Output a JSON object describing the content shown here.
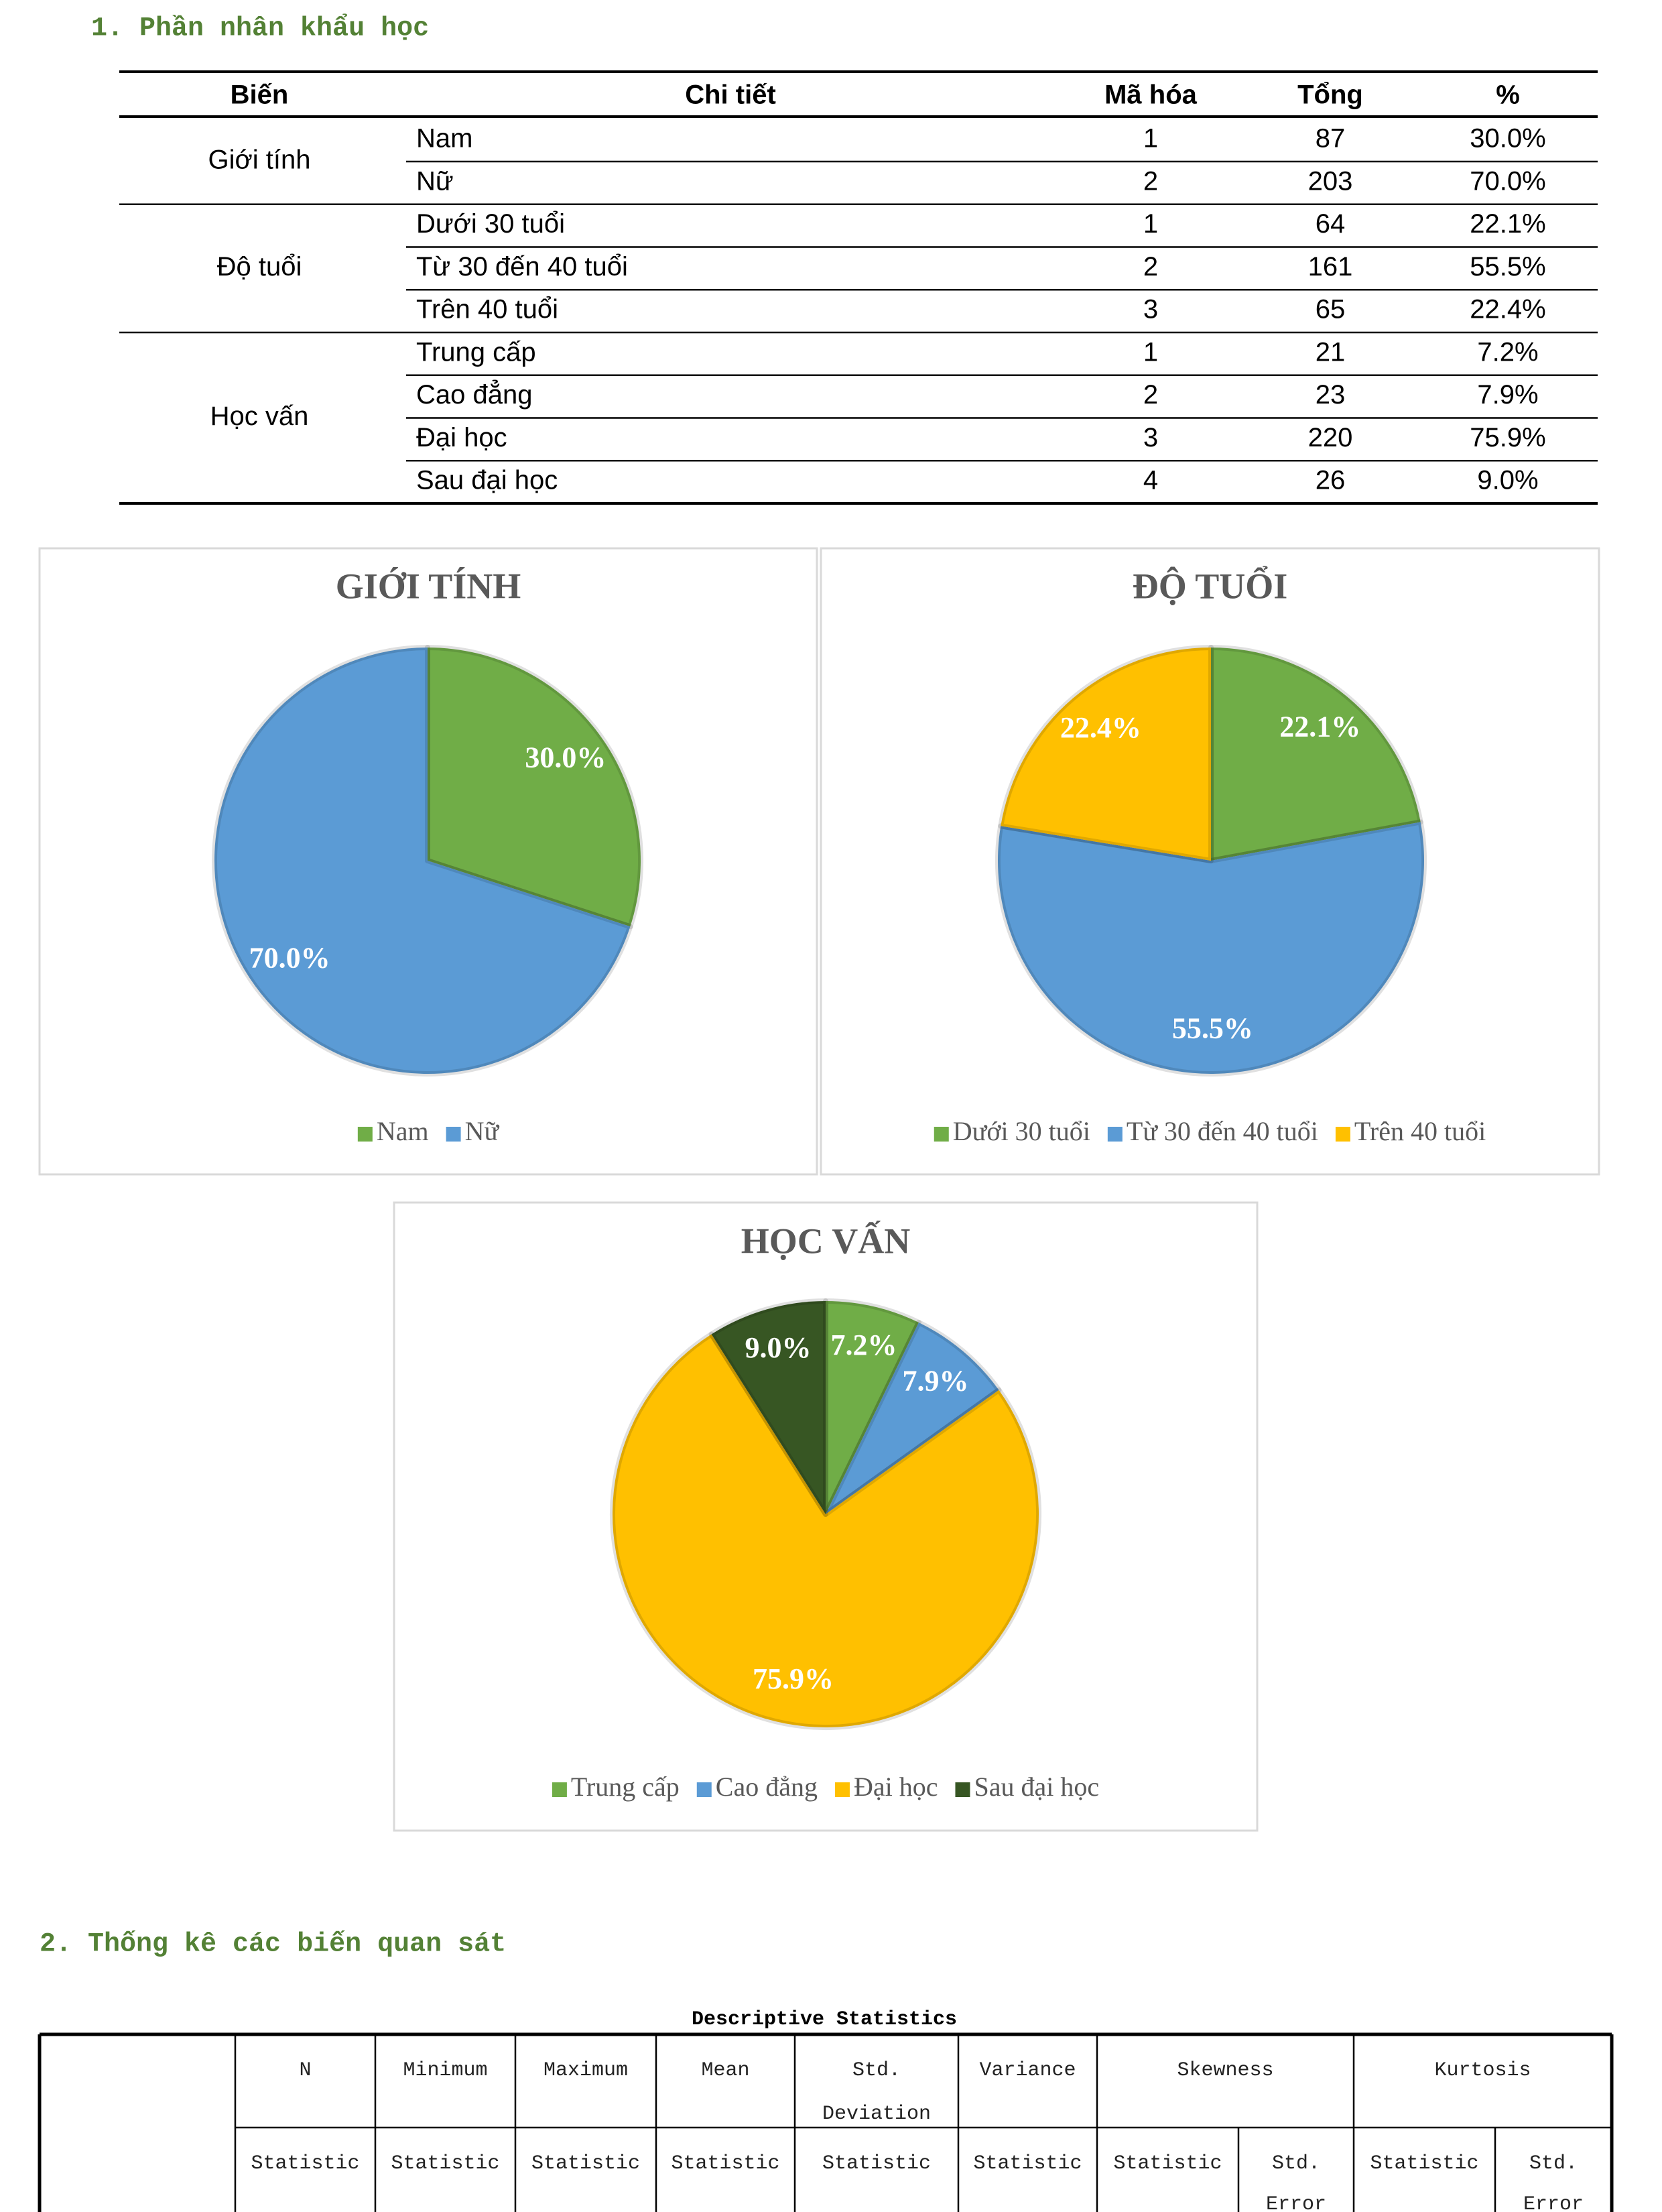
{
  "section_1": {
    "heading": "1. Phần nhân khẩu học",
    "table": {
      "columns": [
        "Biến",
        "Chi tiết",
        "Mã hóa",
        "Tổng",
        "%"
      ],
      "groups": [
        {
          "variable": "Giới tính",
          "rows": [
            [
              "Nam",
              1,
              87,
              "30.0%"
            ],
            [
              "Nữ",
              2,
              203,
              "70.0%"
            ]
          ]
        },
        {
          "variable": "Độ tuổi",
          "rows": [
            [
              "Dưới 30 tuổi",
              1,
              64,
              "22.1%"
            ],
            [
              "Từ 30 đến 40 tuổi",
              2,
              161,
              "55.5%"
            ],
            [
              "Trên 40 tuổi",
              3,
              65,
              "22.4%"
            ]
          ]
        },
        {
          "variable": "Học vấn",
          "rows": [
            [
              "Trung cấp",
              1,
              21,
              "7.2%"
            ],
            [
              "Cao đẳng",
              2,
              23,
              "7.9%"
            ],
            [
              "Đại học",
              3,
              220,
              "75.9%"
            ],
            [
              "Sau đại học",
              4,
              26,
              "9.0%"
            ]
          ]
        }
      ]
    },
    "charts": [
      {
        "type": "pie",
        "title": "GIỚI TÍNH",
        "categories": [
          "Nam",
          "Nữ"
        ],
        "values": [
          30.0,
          70.0
        ],
        "value_labels": [
          "30.0%",
          "70.0%"
        ],
        "colors": [
          "#70ad47",
          "#5b9bd5"
        ]
      },
      {
        "type": "pie",
        "title": "ĐỘ TUỔI",
        "categories": [
          "Dưới 30 tuổi",
          "Từ 30 đến 40 tuổi",
          "Trên 40 tuổi"
        ],
        "values": [
          22.1,
          55.5,
          22.4
        ],
        "value_labels": [
          "22.1%",
          "55.5%",
          "22.4%"
        ],
        "colors": [
          "#70ad47",
          "#5b9bd5",
          "#ffc000"
        ]
      },
      {
        "type": "pie",
        "title": "HỌC VẤN",
        "categories": [
          "Trung cấp",
          "Cao đẳng",
          "Đại học",
          "Sau đại học"
        ],
        "values": [
          7.2,
          7.9,
          75.9,
          9.0
        ],
        "value_labels": [
          "7.2%",
          "7.9%",
          "75.9%",
          "9.0%"
        ],
        "colors": [
          "#70ad47",
          "#5b9bd5",
          "#ffc000",
          "#375623"
        ]
      }
    ]
  },
  "section_2": {
    "heading": "2. Thống kê các biến quan sát",
    "table": {
      "title": "Descriptive Statistics",
      "header_1": [
        "N",
        "Minimum",
        "Maximum",
        "Mean",
        [
          "Std.",
          "Deviation"
        ],
        "Variance",
        "Skewness",
        "Kurtosis"
      ],
      "header_2": [
        "Statistic",
        "Statistic",
        "Statistic",
        "Statistic",
        "Statistic",
        "Statistic",
        "Statistic",
        [
          "Std.",
          "Error"
        ],
        "Statistic",
        [
          "Std.",
          "Error"
        ]
      ]
    }
  }
}
